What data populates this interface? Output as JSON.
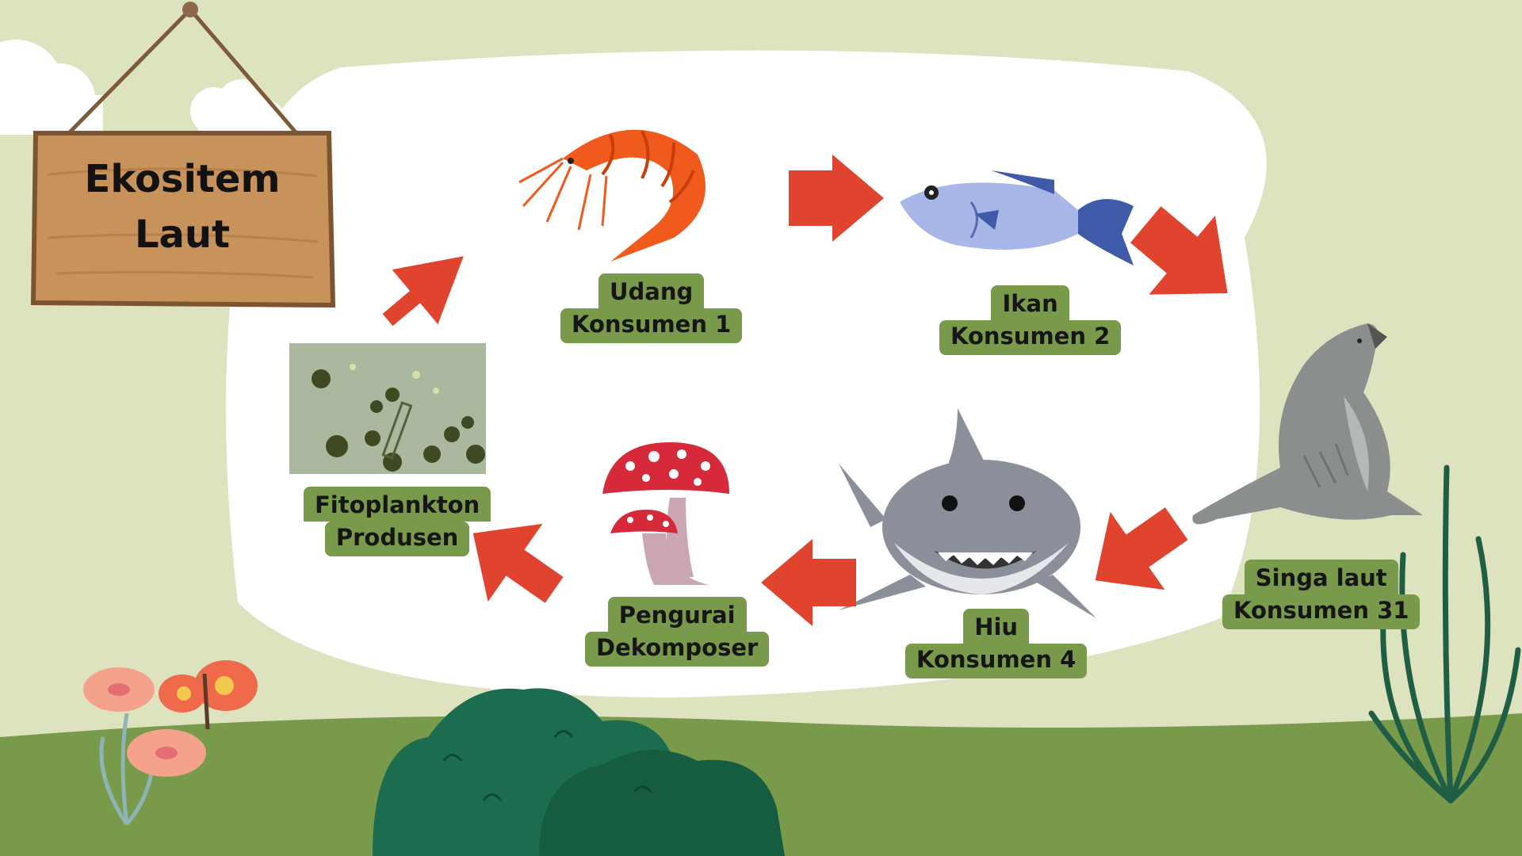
{
  "sign": {
    "line1": "Ekositem",
    "line2": "Laut"
  },
  "nodes": {
    "producer": {
      "line1": "Fitoplankton",
      "line2": "Produsen"
    },
    "shrimp": {
      "line1": "Udang",
      "line2": "Konsumen 1"
    },
    "fish": {
      "line1": "Ikan",
      "line2": "Konsumen 2"
    },
    "sealion": {
      "line1": "Singa laut",
      "line2": "Konsumen 31"
    },
    "shark": {
      "line1": "Hiu",
      "line2": "Konsumen 4"
    },
    "decomposer": {
      "line1": "Pengurai",
      "line2": "Dekomposer"
    }
  },
  "colors": {
    "background": "#dde2bf",
    "ground": "#7a9a4b",
    "label_bg": "#7a9a4b",
    "arrow": "#e0442f",
    "panel": "#ffffff",
    "sign_wood": "#c8935a"
  }
}
